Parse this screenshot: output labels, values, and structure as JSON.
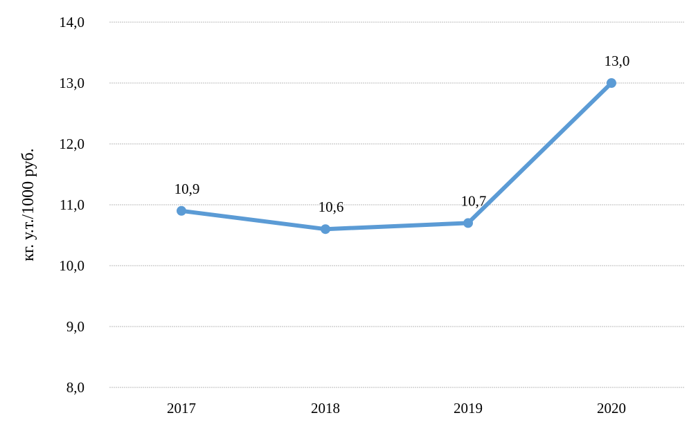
{
  "chart_data": {
    "type": "line",
    "title": "",
    "xlabel": "",
    "ylabel": "кг. у.т./1000 руб.",
    "categories": [
      "2017",
      "2018",
      "2019",
      "2020"
    ],
    "series": [
      {
        "values": [
          10.9,
          10.6,
          10.7,
          13.0
        ],
        "labels": [
          "10,9",
          "10,6",
          "10,7",
          "13,0"
        ],
        "color": "#5b9bd5"
      }
    ],
    "ylim": [
      8,
      14
    ],
    "yticks": [
      8,
      9,
      10,
      11,
      12,
      13,
      14
    ],
    "ytick_labels": [
      "8,0",
      "9,0",
      "10,0",
      "11,0",
      "12,0",
      "13,0",
      "14,0"
    ],
    "grid": true,
    "legend": "none",
    "gridline_color": "#c8c8c8"
  }
}
